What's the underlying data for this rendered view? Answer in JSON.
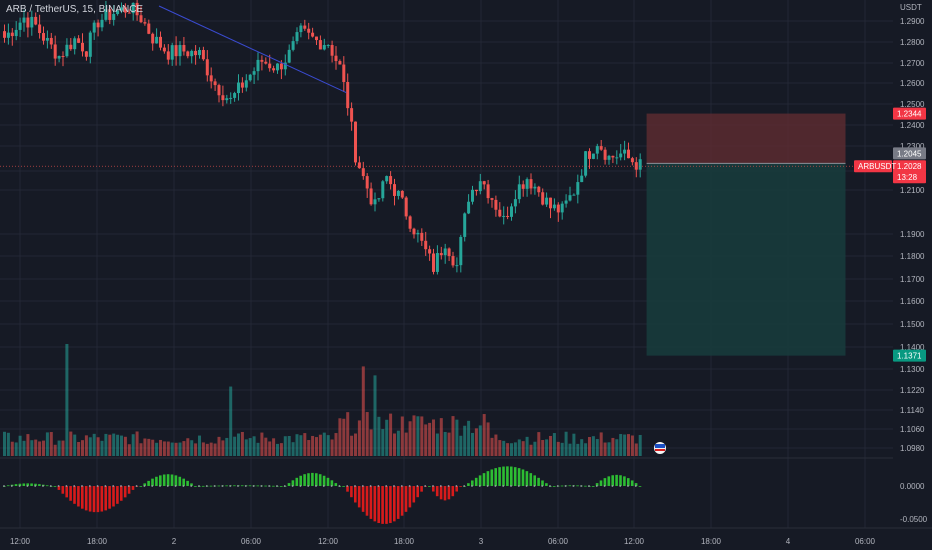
{
  "header": {
    "title": "ARB / TetherUS, 15, BINANCE"
  },
  "colors": {
    "background": "#161a25",
    "grid": "#232735",
    "up": "#26a69a",
    "down": "#ef5350",
    "trendline": "#3a4bd1",
    "stop_zone": "#5b2b30",
    "target_zone": "#173b3c",
    "osc_positive": "#2dbd33",
    "osc_negative": "#d81b1b",
    "axis_text": "#b2b5be"
  },
  "chart_data": [
    {
      "type": "candlestick",
      "title": "ARB / TetherUS, 15, BINANCE",
      "unit_label": "USDT",
      "grid": true,
      "x_ticks": [
        "12:00",
        "18:00",
        "2",
        "06:00",
        "12:00",
        "18:00",
        "3",
        "06:00",
        "12:00",
        "18:00",
        "4",
        "06:00"
      ],
      "y_ticks": [
        "1.2900",
        "1.2800",
        "1.2700",
        "1.2600",
        "1.2500",
        "1.2400",
        "1.2300",
        "1.2200",
        "1.2100",
        "1.1900",
        "1.1800",
        "1.1700",
        "1.1600",
        "1.1500",
        "1.1400",
        "1.1300",
        "1.1220",
        "1.1140",
        "1.1060",
        "1.0980"
      ],
      "ylim": [
        1.098,
        1.294
      ],
      "price_labels": {
        "stop": "1.2344",
        "entry": "1.2045",
        "last": "1.2028",
        "countdown": "13:28",
        "target": "1.1371",
        "symbol": "ARBUSDT"
      },
      "keypoints": [
        [
          0,
          1.28
        ],
        [
          5,
          1.292
        ],
        [
          8,
          1.287
        ],
        [
          11,
          1.277
        ],
        [
          14,
          1.269
        ],
        [
          18,
          1.279
        ],
        [
          21,
          1.273
        ],
        [
          24,
          1.29
        ],
        [
          28,
          1.295
        ],
        [
          32,
          1.298
        ],
        [
          35,
          1.292
        ],
        [
          38,
          1.28
        ],
        [
          42,
          1.271
        ],
        [
          46,
          1.272
        ],
        [
          50,
          1.27
        ],
        [
          54,
          1.252
        ],
        [
          58,
          1.242
        ],
        [
          62,
          1.255
        ],
        [
          66,
          1.266
        ],
        [
          70,
          1.262
        ],
        [
          73,
          1.27
        ],
        [
          76,
          1.283
        ],
        [
          80,
          1.278
        ],
        [
          83,
          1.277
        ],
        [
          86,
          1.262
        ],
        [
          88,
          1.24
        ],
        [
          90,
          1.21
        ],
        [
          92,
          1.196
        ],
        [
          95,
          1.178
        ],
        [
          98,
          1.196
        ],
        [
          101,
          1.185
        ],
        [
          104,
          1.17
        ],
        [
          107,
          1.156
        ],
        [
          110,
          1.142
        ],
        [
          113,
          1.158
        ],
        [
          116,
          1.143
        ],
        [
          119,
          1.185
        ],
        [
          122,
          1.196
        ],
        [
          125,
          1.184
        ],
        [
          128,
          1.17
        ],
        [
          131,
          1.188
        ],
        [
          134,
          1.196
        ],
        [
          137,
          1.188
        ],
        [
          140,
          1.178
        ],
        [
          143,
          1.176
        ],
        [
          146,
          1.188
        ],
        [
          149,
          1.208
        ],
        [
          152,
          1.218
        ],
        [
          155,
          1.208
        ],
        [
          158,
          1.21
        ],
        [
          161,
          1.206
        ],
        [
          163,
          1.203
        ]
      ],
      "trendline": [
        [
          40,
          1.299
        ],
        [
          88,
          1.247
        ]
      ],
      "position": {
        "from": 164,
        "to": 215,
        "stop": 1.2344,
        "entry": 1.2045,
        "target": 1.1371
      }
    },
    {
      "type": "bar",
      "title": "",
      "ylim": [
        0,
        10
      ],
      "spikes": [
        [
          16,
          10
        ],
        [
          58,
          6.2
        ],
        [
          92,
          8.0
        ],
        [
          95,
          7.2
        ],
        [
          104,
          3.1
        ],
        [
          118,
          2.7
        ]
      ],
      "baseline": [
        1.0,
        2.2
      ]
    },
    {
      "type": "bar",
      "title": "",
      "y_ticks": [
        "0.0000",
        "-0.0500"
      ],
      "ylim": [
        -0.06,
        0.035
      ],
      "lobes": [
        [
          0,
          12,
          0.004
        ],
        [
          13,
          34,
          -0.04
        ],
        [
          35,
          49,
          0.018
        ],
        [
          50,
          71,
          0.001
        ],
        [
          72,
          86,
          0.02
        ],
        [
          87,
          108,
          -0.058
        ],
        [
          109,
          117,
          -0.022
        ],
        [
          118,
          140,
          0.03
        ],
        [
          141,
          150,
          0.001
        ],
        [
          151,
          163,
          0.017
        ]
      ]
    }
  ]
}
